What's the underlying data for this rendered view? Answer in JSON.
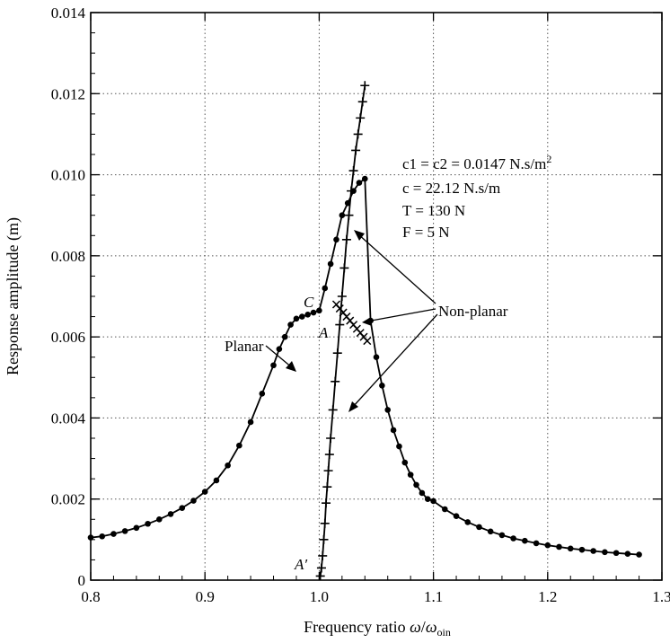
{
  "chart_data": {
    "type": "line",
    "title": "",
    "xlabel": "Frequency ratio",
    "xlabel_omega": "ω",
    "xlabel_slash": "/",
    "xlabel_omega2": "ω",
    "xlabel_sub": "oin",
    "ylabel": "Response amplitude (m)",
    "xlim": [
      0.8,
      1.3
    ],
    "ylim": [
      0,
      0.014
    ],
    "x_ticks": [
      0.8,
      0.9,
      1.0,
      1.1,
      1.2,
      1.3
    ],
    "x_tick_labels": [
      "0.8",
      "0.9",
      "1.0",
      "1.1",
      "1.2",
      "1.3"
    ],
    "y_ticks": [
      0,
      0.002,
      0.004,
      0.006,
      0.008,
      0.01,
      0.012,
      0.014
    ],
    "y_tick_labels": [
      "0",
      "0.002",
      "0.004",
      "0.006",
      "0.008",
      "0.010",
      "0.012",
      "0.014"
    ],
    "grid": true,
    "parameters": [
      {
        "text": "c1 = c2 = 0.0147 N.s/m",
        "sup": "2"
      },
      {
        "text": "c = 22.12  N.s/m",
        "sup": ""
      },
      {
        "text": "T = 130 N",
        "sup": ""
      },
      {
        "text": "F = 5 N",
        "sup": ""
      }
    ],
    "annotations": {
      "planar": "Planar",
      "non_planar": "Non-planar",
      "point_a": "A",
      "point_a_prime": "A′",
      "point_c": "C"
    },
    "series": [
      {
        "marker": "circle",
        "x": [
          0.8,
          0.81,
          0.82,
          0.83,
          0.84,
          0.85,
          0.86,
          0.87,
          0.88,
          0.89,
          0.9,
          0.91,
          0.92,
          0.93,
          0.94,
          0.95,
          0.96,
          0.965,
          0.97,
          0.975,
          0.98,
          0.985,
          0.99,
          0.995,
          1.0,
          1.005,
          1.01,
          1.015,
          1.02,
          1.025,
          1.03,
          1.035,
          1.04,
          1.045,
          1.05,
          1.055,
          1.06,
          1.065,
          1.07,
          1.075,
          1.08,
          1.085,
          1.09,
          1.095,
          1.1,
          1.11,
          1.12,
          1.13,
          1.14,
          1.15,
          1.16,
          1.17,
          1.18,
          1.19,
          1.2,
          1.21,
          1.22,
          1.23,
          1.24,
          1.25,
          1.26,
          1.27,
          1.28
        ],
        "y": [
          0.00105,
          0.00108,
          0.00114,
          0.00121,
          0.00129,
          0.00139,
          0.0015,
          0.00163,
          0.00178,
          0.00196,
          0.00218,
          0.00246,
          0.00283,
          0.00332,
          0.0039,
          0.0046,
          0.0053,
          0.0057,
          0.006,
          0.0063,
          0.00645,
          0.0065,
          0.00655,
          0.0066,
          0.00665,
          0.0072,
          0.0078,
          0.0084,
          0.009,
          0.0093,
          0.0096,
          0.0098,
          0.0099,
          0.0064,
          0.0055,
          0.0048,
          0.0042,
          0.0037,
          0.0033,
          0.0029,
          0.0026,
          0.00235,
          0.00215,
          0.002,
          0.00195,
          0.00175,
          0.00158,
          0.00143,
          0.00131,
          0.0012,
          0.00111,
          0.00103,
          0.00097,
          0.00091,
          0.00086,
          0.00082,
          0.00078,
          0.00075,
          0.00072,
          0.00069,
          0.00067,
          0.00065,
          0.00063
        ]
      },
      {
        "marker": "plus",
        "x": [
          1.001,
          1.002,
          1.003,
          1.004,
          1.005,
          1.006,
          1.007,
          1.008,
          1.009,
          1.01,
          1.012,
          1.014,
          1.016,
          1.018,
          1.02,
          1.022,
          1.024,
          1.026,
          1.028,
          1.03,
          1.032,
          1.034,
          1.036,
          1.038,
          1.04
        ],
        "y": [
          0.0001,
          0.0003,
          0.0006,
          0.001,
          0.0014,
          0.0019,
          0.0023,
          0.0027,
          0.0031,
          0.0035,
          0.0042,
          0.0049,
          0.0056,
          0.0063,
          0.007,
          0.0077,
          0.0084,
          0.009,
          0.0096,
          0.0101,
          0.0106,
          0.011,
          0.0114,
          0.0118,
          0.0122
        ]
      },
      {
        "marker": "cross",
        "x": [
          1.015,
          1.018,
          1.021,
          1.024,
          1.027,
          1.03,
          1.033,
          1.036,
          1.039,
          1.042
        ],
        "y": [
          0.0068,
          0.0067,
          0.0066,
          0.0065,
          0.0064,
          0.0063,
          0.0062,
          0.0061,
          0.006,
          0.0059
        ]
      }
    ]
  }
}
